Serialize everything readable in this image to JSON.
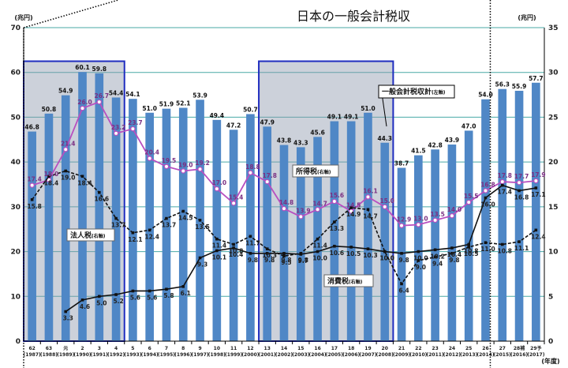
{
  "chart_data": {
    "type": "bar",
    "title": "日本の一般会計税収",
    "y_unit_left": "(兆円)",
    "y_unit_right": "(兆円)",
    "x_unit": "(年度)",
    "ylim_left": [
      0,
      70
    ],
    "ylim_right": [
      0,
      35
    ],
    "yticks_left": [
      "0",
      "10",
      "20",
      "30",
      "40",
      "50",
      "60",
      "70"
    ],
    "yticks_right": [
      "0",
      "5",
      "10",
      "15",
      "20",
      "25",
      "30",
      "35"
    ],
    "grid": true,
    "categories": [
      {
        "era": "62",
        "year": "(1987)"
      },
      {
        "era": "63",
        "year": "(1988)"
      },
      {
        "era": "元",
        "year": "(1989)"
      },
      {
        "era": "2",
        "year": "(1990)"
      },
      {
        "era": "3",
        "year": "(1991)"
      },
      {
        "era": "4",
        "year": "(1992)"
      },
      {
        "era": "5",
        "year": "(1993)"
      },
      {
        "era": "6",
        "year": "(1994)"
      },
      {
        "era": "7",
        "year": "(1995)"
      },
      {
        "era": "8",
        "year": "(1996)"
      },
      {
        "era": "9",
        "year": "(1997)"
      },
      {
        "era": "10",
        "year": "(1998)"
      },
      {
        "era": "11",
        "year": "(1999)"
      },
      {
        "era": "12",
        "year": "(2000)"
      },
      {
        "era": "13",
        "year": "(2001)"
      },
      {
        "era": "14",
        "year": "(2002)"
      },
      {
        "era": "15",
        "year": "(2003)"
      },
      {
        "era": "16",
        "year": "(2004)"
      },
      {
        "era": "17",
        "year": "(2005)"
      },
      {
        "era": "18",
        "year": "(2006)"
      },
      {
        "era": "19",
        "year": "(2007)"
      },
      {
        "era": "20",
        "year": "(2008)"
      },
      {
        "era": "21",
        "year": "(2009)"
      },
      {
        "era": "22",
        "year": "(2010)"
      },
      {
        "era": "23",
        "year": "(2011)"
      },
      {
        "era": "24",
        "year": "(2012)"
      },
      {
        "era": "25",
        "year": "(2013)"
      },
      {
        "era": "26",
        "year": "(2014)"
      },
      {
        "era": "27",
        "year": "(2015)"
      },
      {
        "era": "28補",
        "year": "(2016)"
      },
      {
        "era": "29予",
        "year": "(2017)"
      }
    ],
    "series": [
      {
        "name": "一般会計税収計",
        "name_suffix": "(左軸)",
        "axis": "left",
        "kind": "bar",
        "color": "#4f87c6",
        "values": [
          46.8,
          50.8,
          54.9,
          60.1,
          59.8,
          54.4,
          54.1,
          51.0,
          51.9,
          52.1,
          53.9,
          49.4,
          47.2,
          50.7,
          47.9,
          43.8,
          43.3,
          45.6,
          49.1,
          49.1,
          51.0,
          44.3,
          38.7,
          41.5,
          42.8,
          43.9,
          47.0,
          54.0,
          56.3,
          55.9,
          57.7
        ],
        "labels": [
          "46.8",
          "50.8",
          "54.9",
          "60.1",
          "59.8",
          "54.4",
          "54.1",
          "51.0",
          "51.9",
          "52.1",
          "53.9",
          "49.4",
          "47.2",
          "50.7",
          "47.9",
          "43.8",
          "43.3",
          "45.6",
          "49.1",
          "49.1",
          "51.0",
          "44.3",
          "38.7",
          "41.5",
          "42.8",
          "43.9",
          "47.0",
          "54.0",
          "56.3",
          "55.9",
          "57.7"
        ]
      },
      {
        "name": "所得税",
        "name_suffix": "(右軸)",
        "axis": "right",
        "kind": "line",
        "color": "#b84fc0",
        "values": [
          17.4,
          18.0,
          21.4,
          26.0,
          26.7,
          23.2,
          23.7,
          20.4,
          19.5,
          19.0,
          19.2,
          17.0,
          15.4,
          18.8,
          17.8,
          14.8,
          13.9,
          14.7,
          15.6,
          14.5,
          16.1,
          15.0,
          12.9,
          13.0,
          13.5,
          14.0,
          15.5,
          16.8,
          17.8,
          17.7,
          17.9
        ],
        "labels": [
          "17.4",
          "18.0",
          "21.4",
          "26.0",
          "26.7",
          "23.2",
          "23.7",
          "20.4",
          "19.5",
          "19.0",
          "19.2",
          "17.0",
          "15.4",
          "18.8",
          "17.8",
          "14.8",
          "13.9",
          "14.7",
          "15.6",
          "14.5",
          "16.1",
          "15.0",
          "12.9",
          "13.0",
          "13.5",
          "14.0",
          "15.5",
          "16.8",
          "17.8",
          "17.7",
          "17.9"
        ]
      },
      {
        "name": "法人税",
        "name_suffix": "(右軸)",
        "axis": "right",
        "kind": "line",
        "color": "#111111",
        "values": [
          15.8,
          18.4,
          19.0,
          18.4,
          16.6,
          13.7,
          12.1,
          12.4,
          13.7,
          14.5,
          13.5,
          11.4,
          10.8,
          11.7,
          10.3,
          9.5,
          9.8,
          11.4,
          13.3,
          14.9,
          14.7,
          10.0,
          6.4,
          9.0,
          9.4,
          9.8,
          10.5,
          11.0,
          10.8,
          11.1,
          12.4
        ],
        "labels": [
          "15.8",
          "18.4",
          "19.0",
          "18.4",
          "16.6",
          "13.7",
          "12.1",
          "12.4",
          "13.7",
          "14.5",
          "13.5",
          "11.4",
          "10.8",
          "11.7",
          "10.3",
          "9.5",
          "9.8",
          "11.4",
          "13.3",
          "14.9",
          "14.7",
          "10.0",
          "6.4",
          "9.0",
          "9.4",
          "9.8",
          "10.5",
          "11.0",
          "10.8",
          "11.1",
          "12.4"
        ]
      },
      {
        "name": "消費税",
        "name_suffix": "(右軸)",
        "axis": "right",
        "kind": "line",
        "color": "#111111",
        "start_index": 2,
        "values": [
          null,
          null,
          3.3,
          4.6,
          5.0,
          5.2,
          5.6,
          5.6,
          5.8,
          6.1,
          9.3,
          10.1,
          10.4,
          9.8,
          9.8,
          9.8,
          9.7,
          10.0,
          10.6,
          10.5,
          10.3,
          10.0,
          9.8,
          10.0,
          10.2,
          10.4,
          10.8,
          16.0,
          17.4,
          16.8,
          17.1
        ],
        "labels": [
          null,
          null,
          "3.3",
          "4.6",
          "5.0",
          "5.2",
          "5.6",
          "5.6",
          "5.8",
          "6.1",
          "9.3",
          "10.1",
          "10.4",
          "9.8",
          "9.8",
          "9.8",
          "9.7",
          "10.0",
          "10.6",
          "10.5",
          "10.3",
          "10.0",
          "9.8",
          "10.0",
          "10.2",
          "10.4",
          "10.8",
          "16.0",
          "17.4",
          "16.8",
          "17.1"
        ]
      }
    ],
    "highlight_ranges": [
      [
        0,
        5
      ],
      [
        14,
        21
      ]
    ]
  }
}
